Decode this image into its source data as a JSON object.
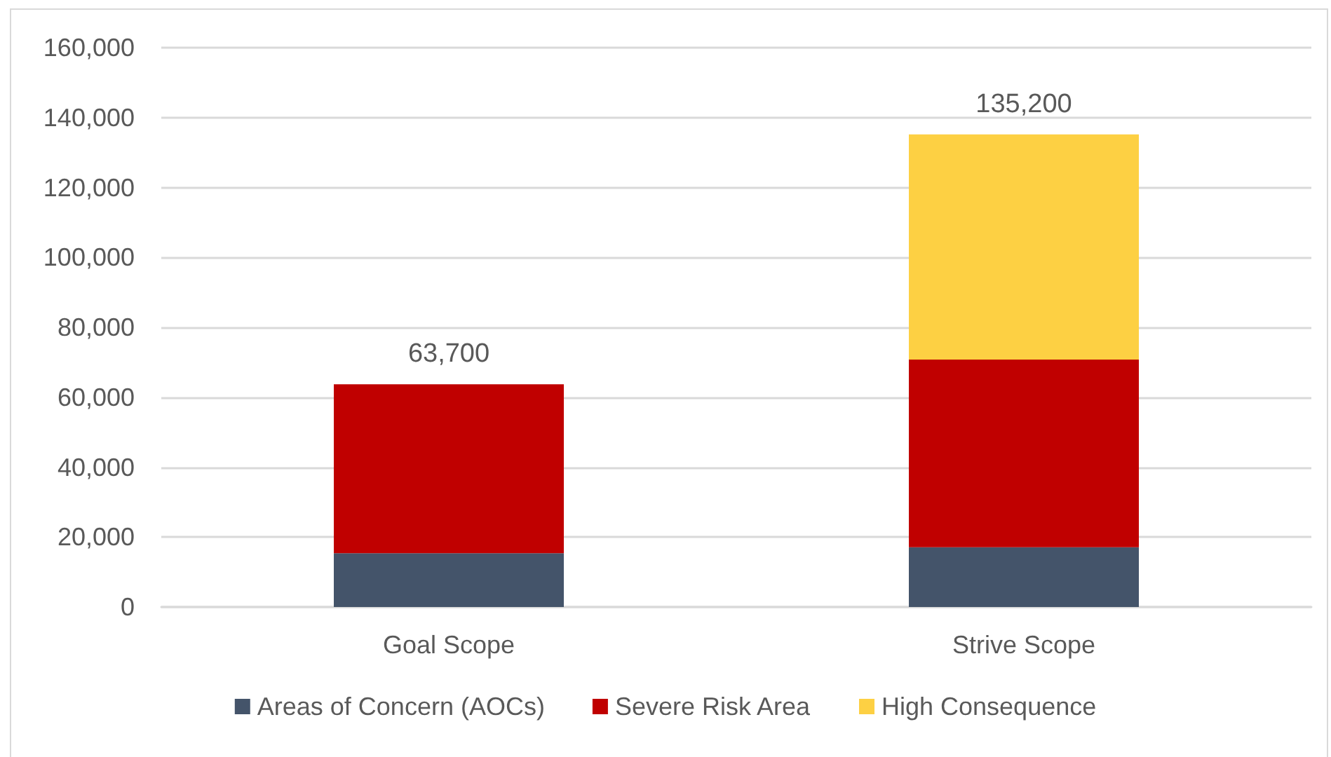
{
  "chart_data": {
    "type": "bar",
    "stacked": true,
    "categories": [
      "Goal Scope",
      "Strive Scope"
    ],
    "series": [
      {
        "name": "Areas of Concern (AOCs)",
        "color": "#44546a",
        "values": [
          15400,
          17100
        ]
      },
      {
        "name": "Severe Risk Area",
        "color": "#c00000",
        "values": [
          48300,
          53700
        ]
      },
      {
        "name": "High Consequence",
        "color": "#fdd043",
        "values": [
          null,
          64400
        ]
      }
    ],
    "totals": [
      "63,700",
      "135,200"
    ],
    "ylim": [
      0,
      160000
    ],
    "yticks": [
      {
        "value": 0,
        "label": "0"
      },
      {
        "value": 20000,
        "label": "20,000"
      },
      {
        "value": 40000,
        "label": "40,000"
      },
      {
        "value": 60000,
        "label": "60,000"
      },
      {
        "value": 80000,
        "label": "80,000"
      },
      {
        "value": 100000,
        "label": "100,000"
      },
      {
        "value": 120000,
        "label": "120,000"
      },
      {
        "value": 140000,
        "label": "140,000"
      },
      {
        "value": 160000,
        "label": "160,000"
      }
    ],
    "grid": "y",
    "legend": "bottom"
  }
}
